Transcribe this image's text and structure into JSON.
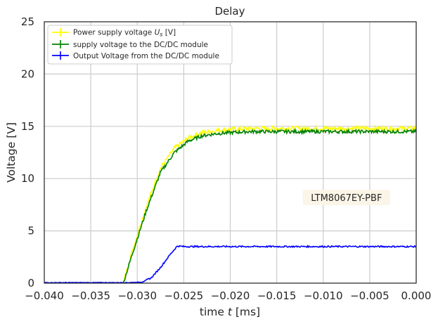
{
  "chart_data": {
    "type": "line",
    "title": "Delay",
    "xlabel_text": "time ",
    "xlabel_var": "t",
    "xlabel_unit": " [ms]",
    "ylabel": "Voltage [V]",
    "xlim": [
      -0.04,
      0.0
    ],
    "ylim": [
      0,
      25
    ],
    "xticks": [
      -0.04,
      -0.035,
      -0.03,
      -0.025,
      -0.02,
      -0.015,
      -0.01,
      -0.005,
      0.0
    ],
    "xtick_labels": [
      "−0.040",
      "−0.035",
      "−0.030",
      "−0.025",
      "−0.020",
      "−0.015",
      "−0.010",
      "−0.005",
      "0.000"
    ],
    "yticks": [
      0,
      5,
      10,
      15,
      20,
      25
    ],
    "ytick_labels": [
      "0",
      "5",
      "10",
      "15",
      "20",
      "25"
    ],
    "grid": true,
    "legend_position": "top-left",
    "annotation": {
      "text": "LTM8067EY-PBF",
      "x": -0.0075,
      "y": 8.2
    },
    "series": [
      {
        "name": "Power supply voltage  Us [V]",
        "legend_text": "Power supply voltage  ",
        "legend_var": "U",
        "legend_sub": "s",
        "legend_unit": " [V]",
        "color": "#ffff00",
        "x": [
          -0.04,
          -0.0315,
          -0.0305,
          -0.029,
          -0.0275,
          -0.026,
          -0.0245,
          -0.023,
          -0.0215,
          -0.02,
          -0.018,
          -0.015,
          -0.01,
          -0.005,
          0.0
        ],
        "y": [
          0,
          0,
          3.2,
          7.4,
          11.0,
          12.9,
          13.9,
          14.4,
          14.6,
          14.7,
          14.8,
          14.8,
          14.8,
          14.8,
          14.8
        ]
      },
      {
        "name": "supply voltage to the DC/DC module",
        "legend_text": "supply voltage to the DC/DC module",
        "color": "#008000",
        "x": [
          -0.04,
          -0.0315,
          -0.0305,
          -0.029,
          -0.0275,
          -0.026,
          -0.0245,
          -0.023,
          -0.0215,
          -0.02,
          -0.018,
          -0.015,
          -0.01,
          -0.005,
          0.0
        ],
        "y": [
          0,
          0,
          2.9,
          7.0,
          10.6,
          12.5,
          13.6,
          14.1,
          14.3,
          14.4,
          14.5,
          14.5,
          14.5,
          14.5,
          14.5
        ]
      },
      {
        "name": "Output Voltage from the DC/DC module",
        "legend_text": "Output Voltage from the DC/DC module",
        "color": "#0000ff",
        "x": [
          -0.04,
          -0.031,
          -0.0295,
          -0.0285,
          -0.0275,
          -0.0265,
          -0.0257,
          -0.025,
          -0.02,
          -0.015,
          -0.01,
          -0.005,
          0.0
        ],
        "y": [
          0.05,
          0.05,
          0.1,
          0.5,
          1.5,
          2.7,
          3.55,
          3.5,
          3.5,
          3.5,
          3.5,
          3.5,
          3.5
        ]
      }
    ]
  }
}
